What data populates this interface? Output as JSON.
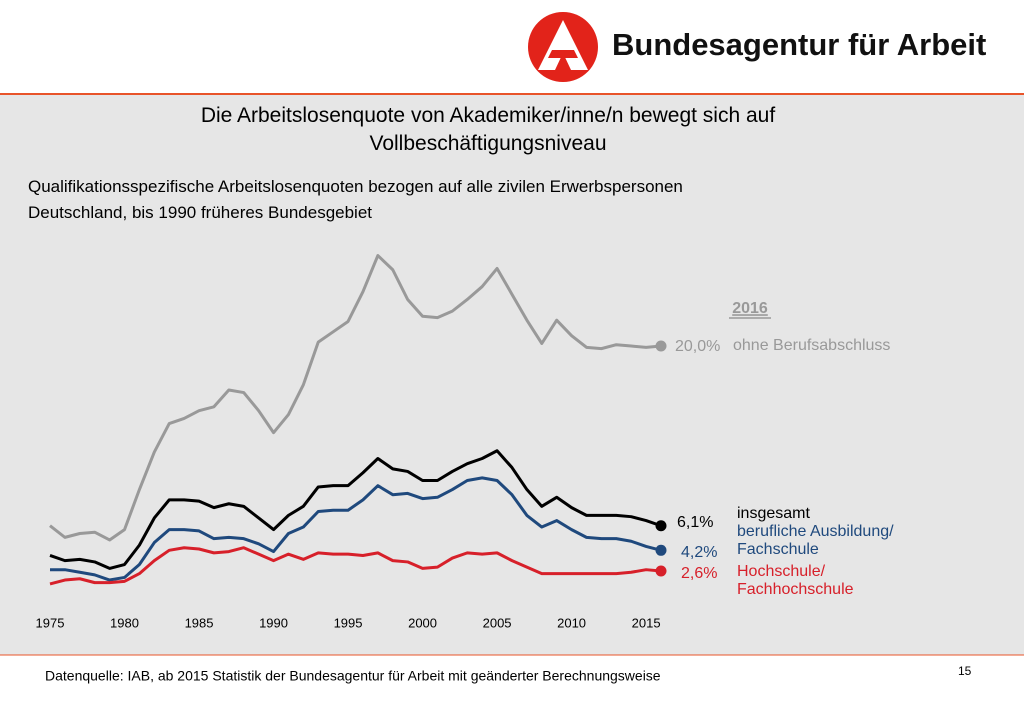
{
  "header": {
    "brand": "Bundesagentur für Arbeit"
  },
  "chart_data": {
    "type": "line",
    "title": "Die Arbeitslosenquote von Akademiker/inne/n bewegt sich auf\nVollbeschäftigungsniveau",
    "subtitle": "Qualifikationsspezifische Arbeitslosenquoten bezogen auf  alle zivilen Erwerbspersonen\nDeutschland, bis 1990 früheres Bundesgebiet",
    "annotation": "2016",
    "x": [
      1975,
      1976,
      1977,
      1978,
      1979,
      1980,
      1981,
      1982,
      1983,
      1984,
      1985,
      1986,
      1987,
      1988,
      1989,
      1990,
      1991,
      1992,
      1993,
      1994,
      1995,
      1996,
      1997,
      1998,
      1999,
      2000,
      2001,
      2002,
      2003,
      2004,
      2005,
      2006,
      2007,
      2008,
      2009,
      2010,
      2011,
      2012,
      2013,
      2014,
      2015,
      2016
    ],
    "xlim": [
      1975,
      2016
    ],
    "xticks": [
      1975,
      1980,
      1985,
      1990,
      1995,
      2000,
      2005,
      2010,
      2015
    ],
    "ylim": [
      0,
      28
    ],
    "series": [
      {
        "name": "ohne Berufsabschluss",
        "color": "#999999",
        "values": [
          6.1,
          5.2,
          5.5,
          5.6,
          5.0,
          5.8,
          8.9,
          11.8,
          14.0,
          14.4,
          15.0,
          15.3,
          16.6,
          16.4,
          15.0,
          13.3,
          14.7,
          17.0,
          20.3,
          21.1,
          21.9,
          24.2,
          27.0,
          25.9,
          23.6,
          22.3,
          22.2,
          22.7,
          23.6,
          24.6,
          26.0,
          24.0,
          22.0,
          20.2,
          22.0,
          20.8,
          19.9,
          19.8,
          20.1,
          20.0,
          19.9,
          20.0
        ],
        "value_labels": [
          null,
          null,
          null,
          null,
          null,
          null,
          null,
          null,
          null,
          null,
          null,
          null,
          null,
          null,
          null,
          null,
          null,
          null,
          null,
          null,
          null,
          null,
          null,
          null,
          null,
          null,
          null,
          null,
          null,
          null,
          null,
          null,
          null,
          null,
          null,
          null,
          null,
          null,
          null,
          null,
          null,
          "20,0%"
        ]
      },
      {
        "name": "insgesamt",
        "color": "#000000",
        "values": [
          3.8,
          3.4,
          3.5,
          3.3,
          2.8,
          3.1,
          4.6,
          6.7,
          8.1,
          8.1,
          8.0,
          7.5,
          7.8,
          7.6,
          6.7,
          5.8,
          6.9,
          7.6,
          9.1,
          9.2,
          9.2,
          10.2,
          11.3,
          10.5,
          10.3,
          9.6,
          9.6,
          10.3,
          10.9,
          11.3,
          11.9,
          10.6,
          8.9,
          7.6,
          8.3,
          7.5,
          6.9,
          6.9,
          6.9,
          6.8,
          6.5,
          6.1
        ],
        "value_labels": [
          null,
          null,
          null,
          null,
          null,
          null,
          null,
          null,
          null,
          null,
          null,
          null,
          null,
          null,
          null,
          null,
          null,
          null,
          null,
          null,
          null,
          null,
          null,
          null,
          null,
          null,
          null,
          null,
          null,
          null,
          null,
          null,
          null,
          null,
          null,
          null,
          null,
          null,
          null,
          null,
          null,
          "6,1%"
        ]
      },
      {
        "name": "berufliche Ausbildung/\nFachschule",
        "color": "#1f497d",
        "values": [
          2.7,
          2.7,
          2.5,
          2.3,
          1.9,
          2.1,
          3.1,
          4.8,
          5.8,
          5.8,
          5.7,
          5.1,
          5.2,
          5.1,
          4.7,
          4.1,
          5.5,
          6.0,
          7.2,
          7.3,
          7.3,
          8.1,
          9.2,
          8.5,
          8.6,
          8.2,
          8.3,
          8.9,
          9.6,
          9.8,
          9.6,
          8.5,
          6.9,
          6.0,
          6.5,
          5.8,
          5.2,
          5.1,
          5.1,
          4.9,
          4.5,
          4.2
        ],
        "value_labels": [
          null,
          null,
          null,
          null,
          null,
          null,
          null,
          null,
          null,
          null,
          null,
          null,
          null,
          null,
          null,
          null,
          null,
          null,
          null,
          null,
          null,
          null,
          null,
          null,
          null,
          null,
          null,
          null,
          null,
          null,
          null,
          null,
          null,
          null,
          null,
          null,
          null,
          null,
          null,
          null,
          null,
          "4,2%"
        ]
      },
      {
        "name": "Hochschule/\nFachhochschule",
        "color": "#d7202a",
        "values": [
          1.6,
          1.9,
          2.0,
          1.7,
          1.7,
          1.8,
          2.4,
          3.4,
          4.2,
          4.4,
          4.3,
          4.0,
          4.1,
          4.4,
          3.9,
          3.4,
          3.9,
          3.5,
          4.0,
          3.9,
          3.9,
          3.8,
          4.0,
          3.4,
          3.3,
          2.8,
          2.9,
          3.6,
          4.0,
          3.9,
          4.0,
          3.4,
          2.9,
          2.4,
          2.4,
          2.4,
          2.4,
          2.4,
          2.4,
          2.5,
          2.7,
          2.6
        ],
        "value_labels": [
          null,
          null,
          null,
          null,
          null,
          null,
          null,
          null,
          null,
          null,
          null,
          null,
          null,
          null,
          null,
          null,
          null,
          null,
          null,
          null,
          null,
          null,
          null,
          null,
          null,
          null,
          null,
          null,
          null,
          null,
          null,
          null,
          null,
          null,
          null,
          null,
          null,
          null,
          null,
          null,
          null,
          "2,6%"
        ]
      }
    ]
  },
  "footer": {
    "source": "Datenquelle: IAB, ab 2015 Statistik der Bundesagentur für Arbeit mit geänderter Berechnungsweise",
    "page": "15"
  }
}
